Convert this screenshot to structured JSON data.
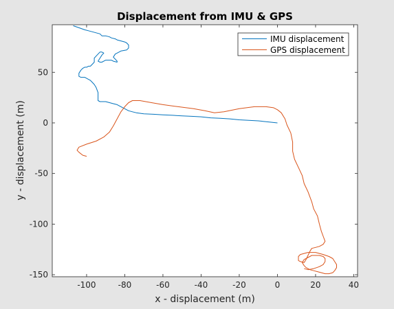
{
  "chart_data": {
    "type": "line",
    "title": "Displacement from IMU & GPS",
    "xlabel": "x - displacement (m)",
    "ylabel": "y - displacement (m)",
    "xlim": [
      -118,
      42
    ],
    "ylim": [
      -152,
      97
    ],
    "xticks": [
      -100,
      -80,
      -60,
      -40,
      -20,
      0,
      20,
      40
    ],
    "yticks": [
      -150,
      -100,
      -50,
      0,
      50
    ],
    "grid": false,
    "legend_position": "top-right",
    "background": "#e5e5e5",
    "axes_background": "#ffffff",
    "series": [
      {
        "name": "IMU displacement",
        "color": "#0072bd",
        "x": [
          -107,
          -104,
          -101,
          -99,
          -97,
          -95,
          -93,
          -92,
          -90,
          -88,
          -87,
          -85,
          -84,
          -82,
          -80,
          -79,
          -78,
          -78,
          -79,
          -82,
          -83,
          -84,
          -85,
          -86,
          -85,
          -84,
          -84,
          -86,
          -87,
          -89,
          -90,
          -91,
          -92,
          -93,
          -94,
          -93,
          -92,
          -91,
          -92,
          -93,
          -94,
          -95,
          -96,
          -96,
          -96,
          -97,
          -98,
          -99,
          -100,
          -101,
          -102,
          -103,
          -104,
          -104,
          -103,
          -102,
          -101,
          -100,
          -99,
          -98,
          -97,
          -96,
          -95,
          -94,
          -94,
          -94,
          -93,
          -92,
          -90,
          -88,
          -86,
          -84,
          -82,
          -80,
          -78,
          -76,
          -74,
          -70,
          -65,
          -60,
          -55,
          -50,
          -45,
          -40,
          -35,
          -30,
          -25,
          -20,
          -15,
          -10,
          -5,
          0
        ],
        "y": [
          96,
          94,
          92,
          91,
          90,
          89,
          88,
          86,
          86,
          85,
          84,
          83,
          82,
          81,
          80,
          79,
          77,
          74,
          72,
          71,
          70,
          69,
          68,
          65,
          63,
          61,
          60,
          61,
          62,
          62,
          62,
          61,
          60,
          60,
          61,
          64,
          67,
          69,
          70,
          70,
          68,
          66,
          64,
          62,
          60,
          58,
          56,
          56,
          55,
          55,
          54,
          52,
          49,
          46,
          45,
          45,
          45,
          44,
          43,
          42,
          40,
          38,
          35,
          30,
          25,
          22,
          21,
          21,
          21,
          20,
          19,
          18,
          16,
          14,
          12,
          11,
          10,
          9,
          8.5,
          8,
          7.5,
          7,
          6.5,
          6,
          5,
          4.5,
          4,
          3,
          2.5,
          2,
          1,
          0
        ]
      },
      {
        "name": "GPS displacement",
        "color": "#d95319",
        "x": [
          -100,
          -102,
          -104,
          -105,
          -104,
          -100,
          -95,
          -91,
          -88,
          -86,
          -84,
          -82,
          -80,
          -78,
          -76,
          -72,
          -66,
          -60,
          -52,
          -44,
          -38,
          -33,
          -28,
          -20,
          -12,
          -6,
          -2,
          0,
          2,
          4,
          5,
          7,
          8,
          8,
          9,
          11,
          13,
          14,
          16,
          18,
          19,
          21,
          22,
          23,
          24,
          25,
          24,
          22,
          20,
          18,
          17,
          16,
          15,
          14,
          12,
          11,
          11,
          11,
          12,
          14,
          16,
          18,
          20,
          22,
          24,
          27,
          29,
          30,
          31,
          31,
          30,
          29,
          27,
          25,
          23,
          21,
          19,
          17,
          15,
          14,
          13,
          14,
          16,
          18,
          20,
          22,
          24,
          25,
          25,
          24,
          22,
          19,
          16,
          14
        ],
        "y": [
          -33,
          -32,
          -29,
          -27,
          -24,
          -21,
          -18,
          -14,
          -9,
          -3,
          4,
          11,
          16,
          20,
          22,
          22,
          20,
          18,
          16,
          14,
          12,
          10,
          11,
          14,
          16,
          16,
          15,
          13,
          10,
          4,
          -2,
          -10,
          -19,
          -28,
          -36,
          -44,
          -52,
          -60,
          -68,
          -78,
          -85,
          -92,
          -100,
          -107,
          -112,
          -117,
          -120,
          -122,
          -123,
          -124,
          -127,
          -131,
          -135,
          -138,
          -137,
          -136,
          -134,
          -132,
          -130,
          -129,
          -128,
          -128,
          -128,
          -129,
          -130,
          -132,
          -134,
          -137,
          -140,
          -143,
          -146,
          -148,
          -149,
          -149,
          -148,
          -147,
          -146,
          -145,
          -143,
          -141,
          -138,
          -135,
          -133,
          -131,
          -131,
          -131,
          -132,
          -134,
          -137,
          -140,
          -142,
          -144,
          -145,
          -144
        ]
      }
    ]
  }
}
